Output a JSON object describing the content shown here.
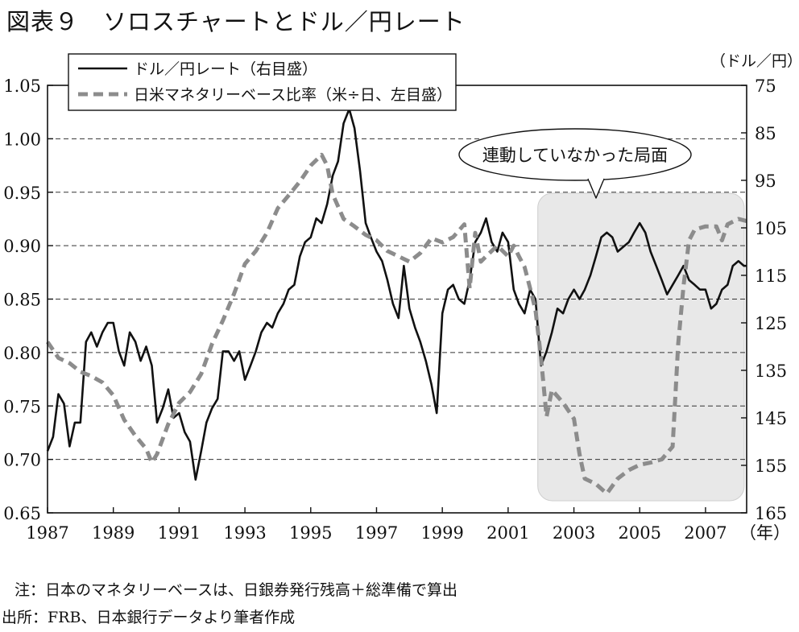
{
  "figure": {
    "title": "図表９　ソロスチャートとドル／円レート",
    "note": "注：日本のマネタリーベースは、日銀券発行残高＋総準備で算出",
    "source": "出所：FRB、日本銀行データより筆者作成"
  },
  "chart_data": {
    "type": "line",
    "x_unit_label": "（年）",
    "y_right_unit_label": "（ドル／円）",
    "x_ticks": [
      "1987",
      "1989",
      "1991",
      "1993",
      "1995",
      "1997",
      "1999",
      "2001",
      "2003",
      "2005",
      "2007"
    ],
    "x_range": [
      1987.0,
      2008.25
    ],
    "y_left": {
      "range": [
        0.65,
        1.05
      ],
      "ticks": [
        "0.65",
        "0.70",
        "0.75",
        "0.80",
        "0.85",
        "0.90",
        "0.95",
        "1.00",
        "1.05"
      ]
    },
    "y_right": {
      "range": [
        165,
        75
      ],
      "ticks": [
        "165",
        "155",
        "145",
        "135",
        "125",
        "115",
        "105",
        "95",
        "85",
        "75"
      ]
    },
    "grid": "horizontal dashed",
    "legend_position": "top-left",
    "series": [
      {
        "name": "ドル／円レート（右目盛）",
        "axis": "right",
        "style": "solid",
        "color": "#111111",
        "points": [
          [
            1987.0,
            152
          ],
          [
            1987.17,
            149
          ],
          [
            1987.33,
            140
          ],
          [
            1987.5,
            142
          ],
          [
            1987.67,
            151
          ],
          [
            1987.83,
            146
          ],
          [
            1988.0,
            146
          ],
          [
            1988.17,
            129
          ],
          [
            1988.33,
            127
          ],
          [
            1988.5,
            130
          ],
          [
            1988.67,
            127
          ],
          [
            1988.83,
            125
          ],
          [
            1989.0,
            125
          ],
          [
            1989.17,
            131
          ],
          [
            1989.33,
            134
          ],
          [
            1989.5,
            127
          ],
          [
            1989.67,
            129
          ],
          [
            1989.83,
            133
          ],
          [
            1990.0,
            130
          ],
          [
            1990.17,
            134
          ],
          [
            1990.33,
            146
          ],
          [
            1990.5,
            143
          ],
          [
            1990.67,
            139
          ],
          [
            1990.83,
            145
          ],
          [
            1991.0,
            144
          ],
          [
            1991.17,
            148
          ],
          [
            1991.33,
            150
          ],
          [
            1991.5,
            158
          ],
          [
            1991.67,
            152
          ],
          [
            1991.83,
            146
          ],
          [
            1992.0,
            143
          ],
          [
            1992.17,
            141
          ],
          [
            1992.33,
            131
          ],
          [
            1992.5,
            131
          ],
          [
            1992.67,
            133
          ],
          [
            1992.83,
            131
          ],
          [
            1993.0,
            137
          ],
          [
            1993.17,
            134
          ],
          [
            1993.33,
            131
          ],
          [
            1993.5,
            127
          ],
          [
            1993.67,
            125
          ],
          [
            1993.83,
            126
          ],
          [
            1994.0,
            123
          ],
          [
            1994.17,
            121
          ],
          [
            1994.33,
            118
          ],
          [
            1994.5,
            117
          ],
          [
            1994.67,
            111
          ],
          [
            1994.83,
            108
          ],
          [
            1995.0,
            107
          ],
          [
            1995.17,
            103
          ],
          [
            1995.33,
            104
          ],
          [
            1995.5,
            100
          ],
          [
            1995.67,
            94
          ],
          [
            1995.83,
            91
          ],
          [
            1996.0,
            83
          ],
          [
            1996.17,
            80
          ],
          [
            1996.33,
            84
          ],
          [
            1996.5,
            93
          ],
          [
            1996.67,
            104
          ],
          [
            1996.83,
            107
          ],
          [
            1997.0,
            110
          ],
          [
            1997.17,
            112
          ],
          [
            1997.33,
            116
          ],
          [
            1997.5,
            121
          ],
          [
            1997.67,
            124
          ],
          [
            1997.83,
            113
          ],
          [
            1998.0,
            122
          ],
          [
            1998.17,
            126
          ],
          [
            1998.33,
            129
          ],
          [
            1998.5,
            133
          ],
          [
            1998.67,
            138
          ],
          [
            1998.83,
            144
          ],
          [
            1999.0,
            123
          ],
          [
            1999.17,
            118
          ],
          [
            1999.33,
            117
          ],
          [
            1999.5,
            120
          ],
          [
            1999.67,
            121
          ],
          [
            1999.83,
            116
          ],
          [
            2000.0,
            108
          ],
          [
            2000.17,
            106
          ],
          [
            2000.33,
            103
          ],
          [
            2000.5,
            108
          ],
          [
            2000.67,
            110
          ],
          [
            2000.83,
            106
          ],
          [
            2001.0,
            108
          ],
          [
            2001.17,
            118
          ],
          [
            2001.33,
            121
          ],
          [
            2001.5,
            123
          ],
          [
            2001.67,
            118
          ],
          [
            2001.83,
            120
          ],
          [
            2002.0,
            134
          ],
          [
            2002.17,
            131
          ],
          [
            2002.33,
            127
          ],
          [
            2002.5,
            122
          ],
          [
            2002.67,
            123
          ],
          [
            2002.83,
            120
          ],
          [
            2003.0,
            118
          ],
          [
            2003.17,
            120
          ],
          [
            2003.33,
            118
          ],
          [
            2003.5,
            115
          ],
          [
            2003.67,
            111
          ],
          [
            2003.83,
            107
          ],
          [
            2004.0,
            106
          ],
          [
            2004.17,
            107
          ],
          [
            2004.33,
            110
          ],
          [
            2004.5,
            109
          ],
          [
            2004.67,
            108
          ],
          [
            2004.83,
            106
          ],
          [
            2005.0,
            104
          ],
          [
            2005.17,
            106
          ],
          [
            2005.33,
            110
          ],
          [
            2005.5,
            113
          ],
          [
            2005.67,
            116
          ],
          [
            2005.83,
            119
          ],
          [
            2006.0,
            117
          ],
          [
            2006.17,
            115
          ],
          [
            2006.33,
            113
          ],
          [
            2006.5,
            116
          ],
          [
            2006.67,
            117
          ],
          [
            2006.83,
            118
          ],
          [
            2007.0,
            118
          ],
          [
            2007.17,
            122
          ],
          [
            2007.33,
            121
          ],
          [
            2007.5,
            118
          ],
          [
            2007.67,
            117
          ],
          [
            2007.83,
            113
          ],
          [
            2008.0,
            112
          ],
          [
            2008.17,
            113
          ],
          [
            2008.25,
            113
          ]
        ]
      },
      {
        "name": "日米マネタリーベース比率（米÷日、左目盛）",
        "axis": "left",
        "style": "dashed",
        "color": "#8c8c8c",
        "points": [
          [
            1987.0,
            0.81
          ],
          [
            1987.33,
            0.795
          ],
          [
            1987.67,
            0.79
          ],
          [
            1988.0,
            0.782
          ],
          [
            1988.33,
            0.778
          ],
          [
            1988.67,
            0.772
          ],
          [
            1989.0,
            0.76
          ],
          [
            1989.33,
            0.737
          ],
          [
            1989.67,
            0.722
          ],
          [
            1990.0,
            0.71
          ],
          [
            1990.17,
            0.697
          ],
          [
            1990.33,
            0.705
          ],
          [
            1990.67,
            0.733
          ],
          [
            1991.0,
            0.753
          ],
          [
            1991.33,
            0.763
          ],
          [
            1991.67,
            0.78
          ],
          [
            1992.0,
            0.808
          ],
          [
            1992.33,
            0.83
          ],
          [
            1992.67,
            0.855
          ],
          [
            1993.0,
            0.883
          ],
          [
            1993.33,
            0.895
          ],
          [
            1993.67,
            0.912
          ],
          [
            1994.0,
            0.935
          ],
          [
            1994.33,
            0.947
          ],
          [
            1994.67,
            0.96
          ],
          [
            1995.0,
            0.975
          ],
          [
            1995.33,
            0.985
          ],
          [
            1995.5,
            0.975
          ],
          [
            1995.67,
            0.948
          ],
          [
            1996.0,
            0.925
          ],
          [
            1996.33,
            0.918
          ],
          [
            1996.67,
            0.91
          ],
          [
            1997.0,
            0.905
          ],
          [
            1997.33,
            0.895
          ],
          [
            1997.67,
            0.89
          ],
          [
            1998.0,
            0.885
          ],
          [
            1998.33,
            0.893
          ],
          [
            1998.67,
            0.907
          ],
          [
            1999.0,
            0.903
          ],
          [
            1999.33,
            0.908
          ],
          [
            1999.67,
            0.92
          ],
          [
            1999.83,
            0.86
          ],
          [
            2000.0,
            0.912
          ],
          [
            2000.17,
            0.885
          ],
          [
            2000.33,
            0.89
          ],
          [
            2000.67,
            0.9
          ],
          [
            2001.0,
            0.89
          ],
          [
            2001.17,
            0.9
          ],
          [
            2001.33,
            0.89
          ],
          [
            2001.5,
            0.88
          ],
          [
            2001.67,
            0.86
          ],
          [
            2001.83,
            0.84
          ],
          [
            2002.0,
            0.795
          ],
          [
            2002.17,
            0.74
          ],
          [
            2002.33,
            0.765
          ],
          [
            2002.67,
            0.753
          ],
          [
            2003.0,
            0.738
          ],
          [
            2003.17,
            0.705
          ],
          [
            2003.33,
            0.682
          ],
          [
            2003.67,
            0.677
          ],
          [
            2004.0,
            0.668
          ],
          [
            2004.33,
            0.682
          ],
          [
            2004.67,
            0.69
          ],
          [
            2005.0,
            0.695
          ],
          [
            2005.33,
            0.697
          ],
          [
            2005.67,
            0.7
          ],
          [
            2006.0,
            0.712
          ],
          [
            2006.17,
            0.808
          ],
          [
            2006.33,
            0.862
          ],
          [
            2006.5,
            0.905
          ],
          [
            2006.67,
            0.915
          ],
          [
            2007.0,
            0.918
          ],
          [
            2007.33,
            0.918
          ],
          [
            2007.5,
            0.905
          ],
          [
            2007.67,
            0.92
          ],
          [
            2008.0,
            0.925
          ],
          [
            2008.25,
            0.923
          ]
        ]
      }
    ],
    "annotation": {
      "text": "連動していなかった局面",
      "x_range": [
        2002.0,
        2008.25
      ]
    }
  }
}
